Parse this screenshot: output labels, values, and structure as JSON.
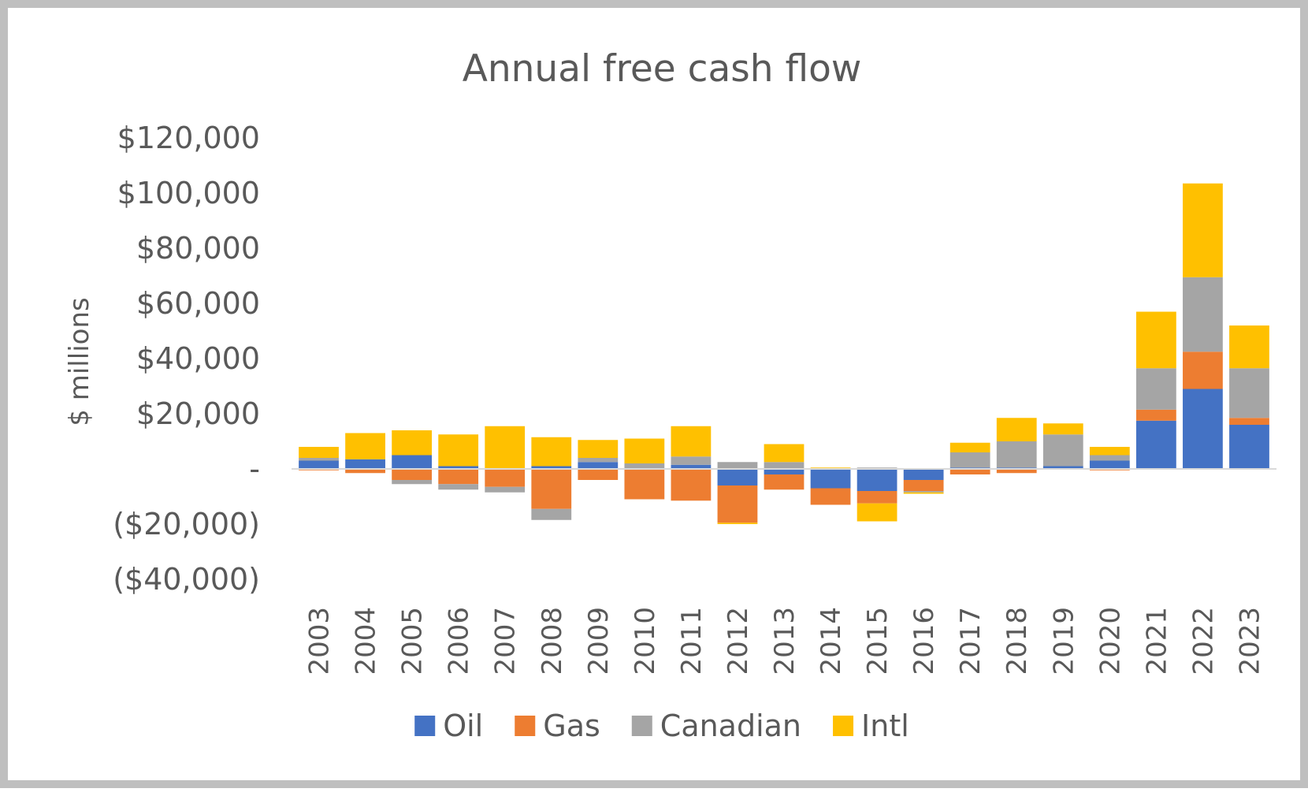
{
  "chart_data": {
    "type": "bar",
    "stacked": true,
    "title": "Annual free cash flow",
    "xlabel": "",
    "ylabel": "$ millions",
    "ylim": [
      -40000,
      120000
    ],
    "yticks": [
      120000,
      100000,
      80000,
      60000,
      40000,
      20000,
      0,
      -20000,
      -40000
    ],
    "ytick_labels": [
      "$120,000",
      "$100,000",
      "$80,000",
      "$60,000",
      "$40,000",
      "$20,000",
      "-",
      "($20,000)",
      "($40,000)"
    ],
    "grid": false,
    "legend_position": "bottom",
    "categories": [
      "2003",
      "2004",
      "2005",
      "2006",
      "2007",
      "2008",
      "2009",
      "2010",
      "2011",
      "2012",
      "2013",
      "2014",
      "2015",
      "2016",
      "2017",
      "2018",
      "2019",
      "2020",
      "2021",
      "2022",
      "2023"
    ],
    "series": [
      {
        "name": "Oil",
        "color": "#4472c4",
        "values": [
          3000,
          3500,
          5000,
          1000,
          0,
          1000,
          2500,
          0,
          1500,
          -6000,
          -2000,
          -7000,
          -8000,
          -4000,
          500,
          500,
          1000,
          3000,
          17500,
          29000,
          16000
        ]
      },
      {
        "name": "Gas",
        "color": "#ed7d31",
        "values": [
          -500,
          -1500,
          -4000,
          -5500,
          -6500,
          -14500,
          -4000,
          -11000,
          -11500,
          -13500,
          -5500,
          -6000,
          -4500,
          -4000,
          -2000,
          -1500,
          0,
          -500,
          4000,
          13500,
          2500
        ]
      },
      {
        "name": "Canadian",
        "color": "#a5a5a5",
        "values": [
          1000,
          0,
          -1500,
          -2000,
          -2000,
          -4000,
          1500,
          2000,
          3000,
          2500,
          2500,
          0,
          500,
          -500,
          5500,
          9500,
          11500,
          2000,
          15000,
          27000,
          18000
        ]
      },
      {
        "name": "Intl",
        "color": "#ffc000",
        "values": [
          4000,
          9500,
          9000,
          11500,
          15500,
          10500,
          6500,
          9000,
          11000,
          -500,
          6500,
          500,
          -6500,
          -500,
          3500,
          8500,
          4000,
          3000,
          20500,
          34000,
          15500
        ]
      }
    ]
  }
}
